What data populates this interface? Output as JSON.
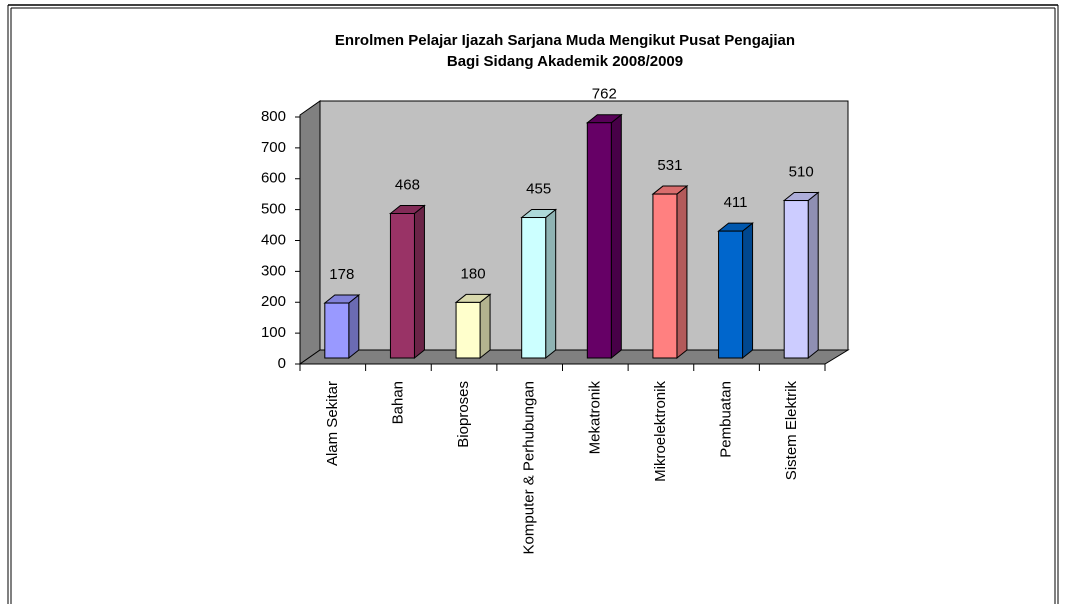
{
  "chart_data": {
    "type": "bar3d",
    "title": [
      "Enrolmen Pelajar Ijazah Sarjana Muda Mengikut Pusat Pengajian",
      "Bagi Sidang Akademik 2008/2009"
    ],
    "categories": [
      "Alam Sekitar",
      "Bahan",
      "Bioproses",
      "Komputer & Perhubungan",
      "Mekatronik",
      "Mikroelektronik",
      "Pembuatan",
      "Sistem Elektrik"
    ],
    "values": [
      178,
      468,
      180,
      455,
      762,
      531,
      411,
      510
    ],
    "colors": [
      "#9999ff",
      "#993366",
      "#ffffcc",
      "#ccffff",
      "#660066",
      "#ff8080",
      "#0066cc",
      "#ccccff"
    ],
    "ylim": [
      0,
      800
    ],
    "yticks": [
      0,
      100,
      200,
      300,
      400,
      500,
      600,
      700,
      800
    ]
  }
}
